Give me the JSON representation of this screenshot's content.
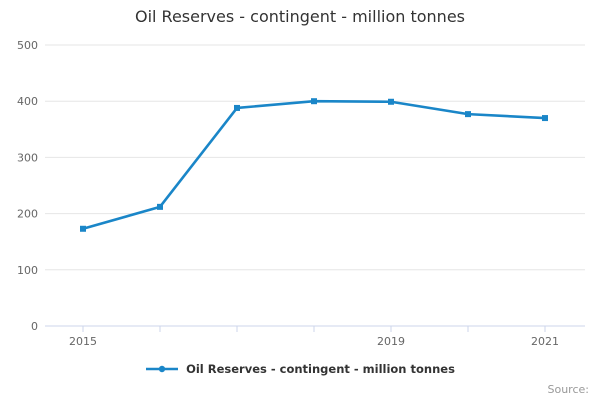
{
  "title": {
    "text": "Oil Reserves - contingent - million tonnes"
  },
  "legend": {
    "label": "Oil Reserves - contingent - million tonnes"
  },
  "footer": {
    "source_label": "Source:"
  },
  "chart_data": {
    "type": "line",
    "title": "Oil Reserves - contingent - million tonnes",
    "x": [
      2015,
      2016,
      2017,
      2018,
      2019,
      2020,
      2021
    ],
    "x_axis_tick_years": [
      2015,
      2016,
      2017,
      2018,
      2019,
      2020,
      2021
    ],
    "x_axis_visible_labels": [
      "2015",
      "2019",
      "2021"
    ],
    "y_ticks": [
      0,
      100,
      200,
      300,
      400,
      500
    ],
    "ylim": [
      0,
      500
    ],
    "grid": true,
    "legend_position": "bottom",
    "series": [
      {
        "name": "Oil Reserves - contingent - million tonnes",
        "color": "#1a86c8",
        "values": [
          173,
          212,
          388,
          400,
          399,
          377,
          370
        ]
      }
    ]
  },
  "style": {
    "series_color": "#1a86c8",
    "grid_color": "#e6e6e6",
    "axis_color": "#ccd6eb",
    "tick_label_color": "#666666",
    "title_color": "#333333",
    "legend_text_color": "#333333",
    "source_color": "#999999",
    "background": "#ffffff"
  }
}
